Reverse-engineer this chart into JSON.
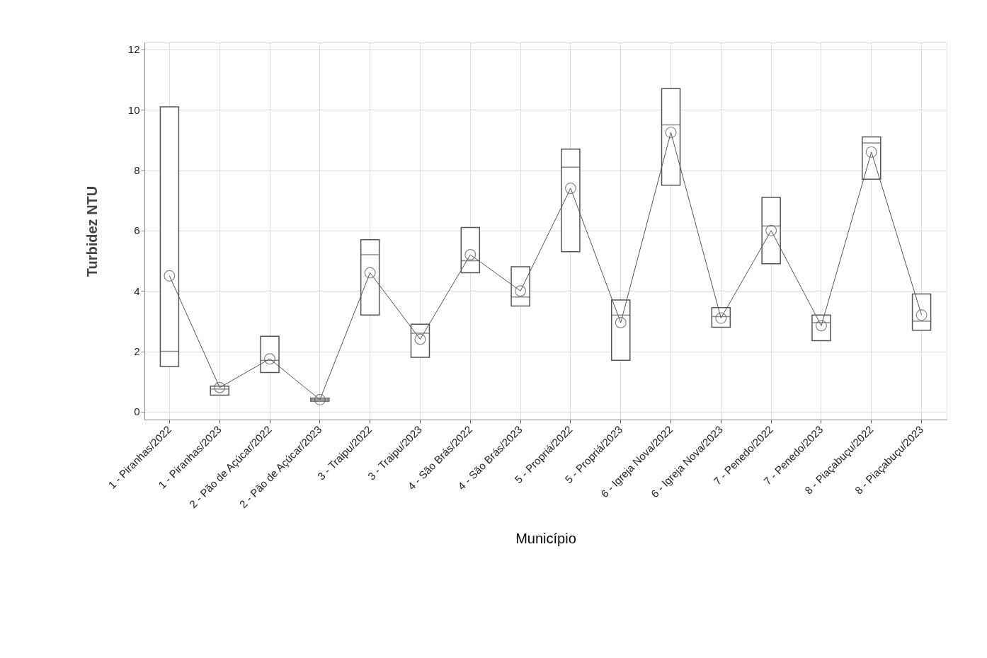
{
  "chart_data": {
    "type": "box",
    "xlabel": "Município",
    "ylabel": "Turbidez NTU",
    "categories": [
      "1 - Piranhas/2022",
      "1 - Piranhas/2023",
      "2 - Pão de Açúcar/2022",
      "2 - Pão de Açúcar/2023",
      "3 - Traipu/2022",
      "3 - Traipu/2023",
      "4 - São Brás/2022",
      "4 - São Brás/2023",
      "5 - Propriá/2022",
      "5 - Propriá/2023",
      "6 - Igreja Nova/2022",
      "6 - Igreja Nova/2023",
      "7 - Penedo/2022",
      "7 - Penedo/2023",
      "8 - Piaçabuçu/2022",
      "8 - Piaçabuçu/2023"
    ],
    "boxes": [
      {
        "low": 1.5,
        "q1": 1.5,
        "median": 2.0,
        "q3": 10.1,
        "high": 10.1
      },
      {
        "low": 0.55,
        "q1": 0.55,
        "median": 0.75,
        "q3": 0.85,
        "high": 0.85
      },
      {
        "low": 1.3,
        "q1": 1.3,
        "median": 1.7,
        "q3": 2.5,
        "high": 2.5
      },
      {
        "low": 0.35,
        "q1": 0.35,
        "median": 0.4,
        "q3": 0.45,
        "high": 0.45
      },
      {
        "low": 3.2,
        "q1": 3.2,
        "median": 5.2,
        "q3": 5.7,
        "high": 5.7
      },
      {
        "low": 1.8,
        "q1": 1.8,
        "median": 2.6,
        "q3": 2.9,
        "high": 2.9
      },
      {
        "low": 4.6,
        "q1": 4.6,
        "median": 5.0,
        "q3": 6.1,
        "high": 6.1
      },
      {
        "low": 3.5,
        "q1": 3.5,
        "median": 3.8,
        "q3": 4.8,
        "high": 4.8
      },
      {
        "low": 5.3,
        "q1": 5.3,
        "median": 8.1,
        "q3": 8.7,
        "high": 8.7
      },
      {
        "low": 1.7,
        "q1": 1.7,
        "median": 3.2,
        "q3": 3.7,
        "high": 3.7
      },
      {
        "low": 7.5,
        "q1": 7.5,
        "median": 9.5,
        "q3": 10.7,
        "high": 10.7
      },
      {
        "low": 2.8,
        "q1": 2.8,
        "median": 3.15,
        "q3": 3.45,
        "high": 3.45
      },
      {
        "low": 4.9,
        "q1": 4.9,
        "median": 6.15,
        "q3": 7.1,
        "high": 7.1
      },
      {
        "low": 2.35,
        "q1": 2.35,
        "median": 2.95,
        "q3": 3.2,
        "high": 3.2
      },
      {
        "low": 7.7,
        "q1": 7.7,
        "median": 8.9,
        "q3": 9.1,
        "high": 9.1
      },
      {
        "low": 2.7,
        "q1": 2.7,
        "median": 3.0,
        "q3": 3.9,
        "high": 3.9
      }
    ],
    "series": [
      {
        "type": "line",
        "color": "#555555",
        "values": [
          4.5,
          0.8,
          1.75,
          0.4,
          4.6,
          2.4,
          5.2,
          4.0,
          7.4,
          2.95,
          9.25,
          3.1,
          6.0,
          2.85,
          8.6,
          3.2
        ]
      }
    ],
    "color": "#555555",
    "marker": "circle",
    "line_style": "solid",
    "ylim": [
      -0.26,
      12.23
    ],
    "yticks": [
      0,
      2,
      4,
      6,
      8,
      10,
      12
    ],
    "grid": true
  }
}
